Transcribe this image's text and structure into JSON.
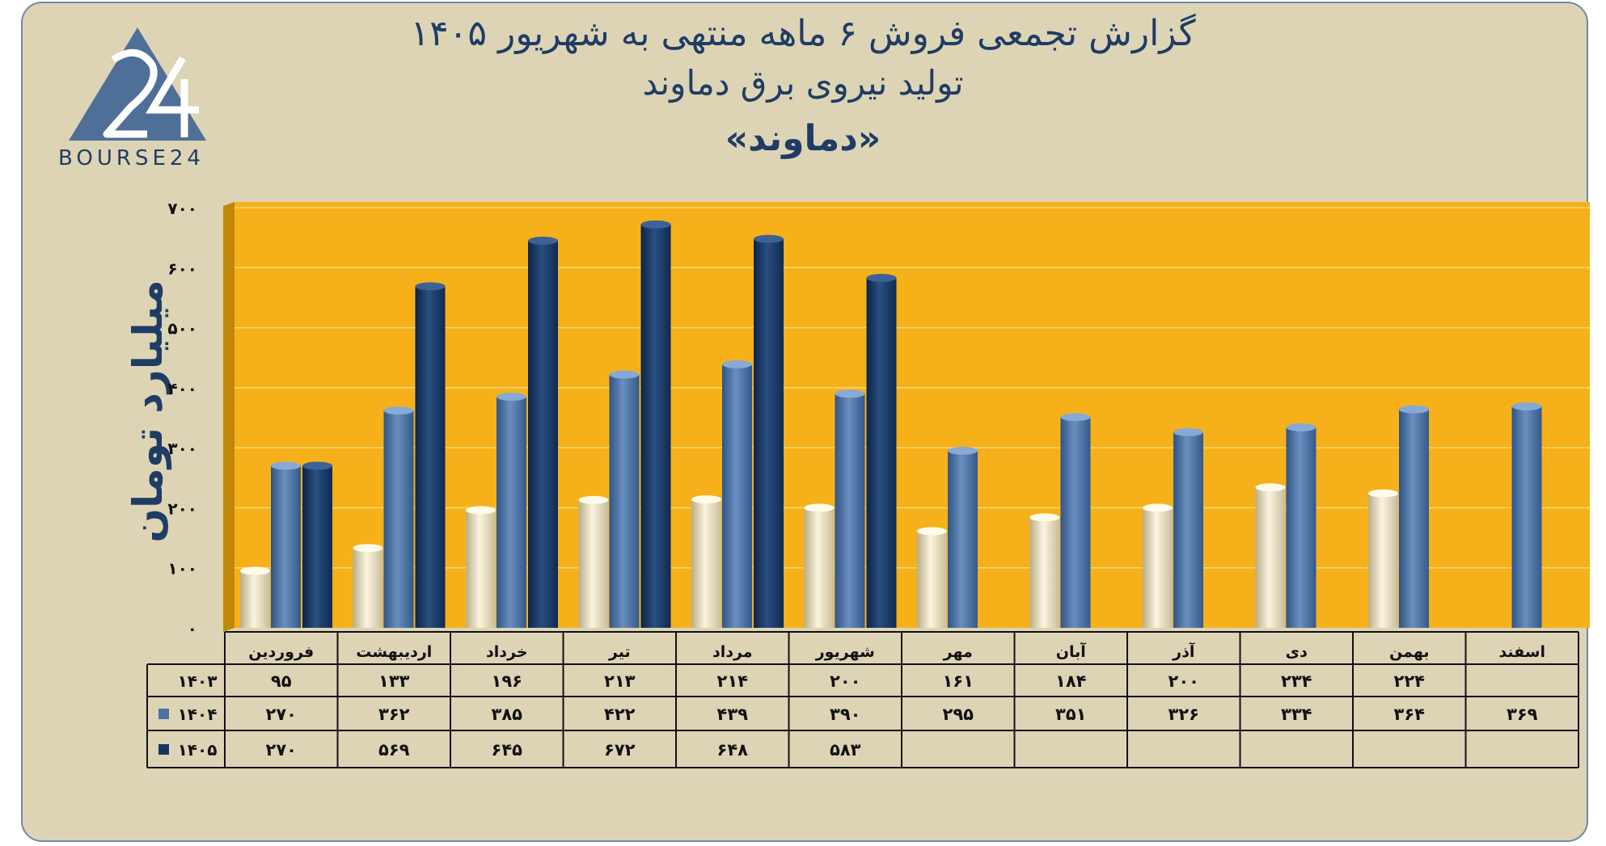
{
  "title": "گزارش تجمعی فروش ۶ ماهه منتهی به شهریور ۱۴۰۵",
  "subtitle": "تولید نیروی برق دماوند",
  "symbol": "«دماوند»",
  "logo_text": "BOURSE24",
  "colors": {
    "card_bg": "#ddd4b6",
    "plot_bg": "#f6b11a",
    "series_1403": "#efe6c6",
    "series_1404": "#4c72a4",
    "series_1405": "#17365f",
    "text": "#1f3d64"
  },
  "chart_data": {
    "type": "bar",
    "ylabel": "میلیارد تومان",
    "ylim": [
      0,
      700
    ],
    "yticks": [
      "۰",
      "۱۰۰",
      "۲۰۰",
      "۳۰۰",
      "۴۰۰",
      "۵۰۰",
      "۶۰۰",
      "۷۰۰"
    ],
    "ytick_values": [
      0,
      100,
      200,
      300,
      400,
      500,
      600,
      700
    ],
    "categories": [
      "فروردین",
      "اردیبهشت",
      "خرداد",
      "تیر",
      "مرداد",
      "شهریور",
      "مهر",
      "آبان",
      "آذر",
      "دی",
      "بهمن",
      "اسفند"
    ],
    "series": [
      {
        "name": "۱۴۰۳",
        "values": [
          95,
          133,
          196,
          213,
          214,
          200,
          161,
          184,
          200,
          234,
          224,
          null
        ],
        "labels": [
          "۹۵",
          "۱۳۳",
          "۱۹۶",
          "۲۱۳",
          "۲۱۴",
          "۲۰۰",
          "۱۶۱",
          "۱۸۴",
          "۲۰۰",
          "۲۳۴",
          "۲۲۴",
          ""
        ]
      },
      {
        "name": "۱۴۰۴",
        "values": [
          270,
          362,
          385,
          422,
          439,
          390,
          295,
          351,
          326,
          334,
          364,
          369
        ],
        "labels": [
          "۲۷۰",
          "۳۶۲",
          "۳۸۵",
          "۴۲۲",
          "۴۳۹",
          "۳۹۰",
          "۲۹۵",
          "۳۵۱",
          "۳۲۶",
          "۳۳۴",
          "۳۶۴",
          "۳۶۹"
        ]
      },
      {
        "name": "۱۴۰۵",
        "values": [
          270,
          569,
          645,
          672,
          648,
          583,
          null,
          null,
          null,
          null,
          null,
          null
        ],
        "labels": [
          "۲۷۰",
          "۵۶۹",
          "۶۴۵",
          "۶۷۲",
          "۶۴۸",
          "۵۸۳",
          "",
          "",
          "",
          "",
          "",
          ""
        ]
      }
    ],
    "grid": true,
    "legend": "data table below chart"
  }
}
